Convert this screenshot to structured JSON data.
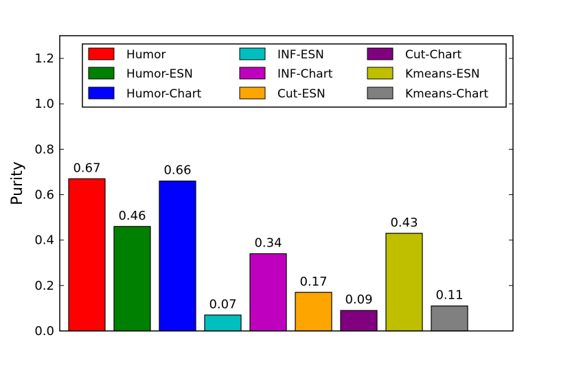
{
  "chart_data": {
    "type": "bar",
    "title": "",
    "xlabel": "",
    "ylabel": "Purity",
    "ylim": [
      0,
      1.3
    ],
    "yticks": [
      "0.0",
      "0.2",
      "0.4",
      "0.6",
      "0.8",
      "1.0",
      "1.2"
    ],
    "grid": false,
    "legend_position": "top",
    "legend_columns": 3,
    "categories": [
      "Humor",
      "Humor-ESN",
      "Humor-Chart",
      "INF-ESN",
      "INF-Chart",
      "Cut-ESN",
      "Cut-Chart",
      "Kmeans-ESN",
      "Kmeans-Chart"
    ],
    "values": [
      0.67,
      0.46,
      0.66,
      0.07,
      0.34,
      0.17,
      0.09,
      0.43,
      0.11
    ],
    "value_labels": [
      "0.67",
      "0.46",
      "0.66",
      "0.07",
      "0.34",
      "0.17",
      "0.09",
      "0.43",
      "0.11"
    ],
    "colors": [
      "#ff0000",
      "#008000",
      "#0000ff",
      "#00bfbf",
      "#bf00bf",
      "#ffa500",
      "#800080",
      "#bfbf00",
      "#808080"
    ]
  }
}
